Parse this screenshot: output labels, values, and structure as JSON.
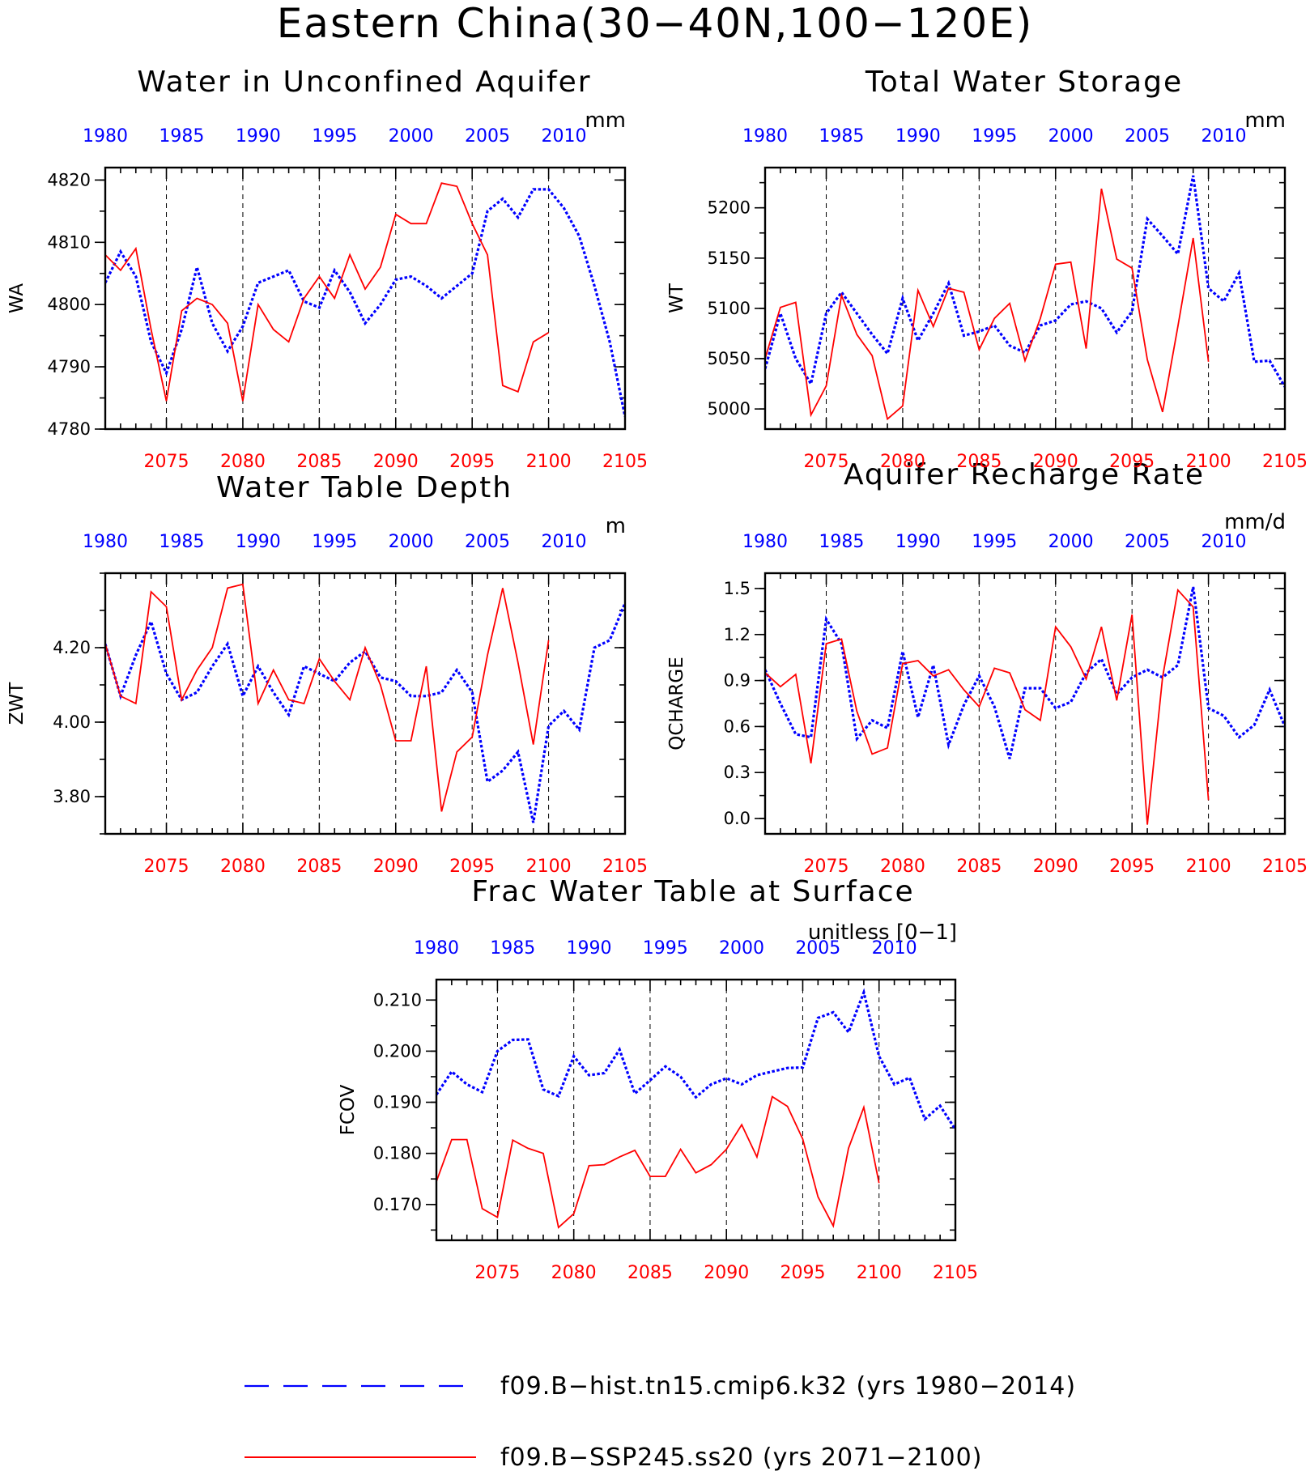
{
  "title": "Eastern China(30−40N,100−120E)",
  "colors": {
    "hist": "#0000ff",
    "ssp": "#ff0000",
    "axes": "#000000"
  },
  "legend": {
    "hist_label": "f09.B−hist.tn15.cmip6.k32 (yrs 1980−2014)",
    "ssp_label": "f09.B−SSP245.ss20 (yrs 2071−2100)"
  },
  "chart_data": [
    {
      "type": "line",
      "title": "Water in Unconfined Aquifer",
      "units": "mm",
      "ylabel": "WA",
      "ylim": [
        4780,
        4822
      ],
      "yticks": [
        "4780",
        "4790",
        "4800",
        "4810",
        "4820"
      ],
      "top_axis": {
        "range": [
          1980,
          2014
        ],
        "ticks": [
          "1980",
          "1985",
          "1990",
          "1995",
          "2000",
          "2005",
          "2010"
        ]
      },
      "bottom_axis": {
        "range": [
          2071,
          2105
        ],
        "ticks": [
          "2075",
          "2080",
          "2085",
          "2090",
          "2095",
          "2100",
          "2105"
        ]
      },
      "series": [
        {
          "name": "f09.B−hist.tn15.cmip6.k32 (yrs 1980−2014)",
          "style": "dotted",
          "values": [
            4803.5,
            4808.5,
            4804.5,
            4794,
            4789,
            4796,
            4806,
            4797,
            4792.5,
            4796.5,
            4803.5,
            4804.5,
            4805.5,
            4800.5,
            4799.5,
            4805.5,
            4802,
            4797,
            4800,
            4804,
            4804.5,
            4803,
            4801,
            4803,
            4805,
            4815,
            4817,
            4814,
            4818.5,
            4818.5,
            4815.5,
            4811,
            4803,
            4794,
            4782
          ]
        },
        {
          "name": "f09.B−SSP245.ss20 (yrs 2071−2100)",
          "style": "solid",
          "values": [
            4808,
            4805.5,
            4809,
            4796,
            4784.5,
            4799,
            4801,
            4800,
            4797,
            4784.5,
            4800,
            4796,
            4794,
            4801,
            4804.5,
            4801,
            4808,
            4802.5,
            4806,
            4814.5,
            4813,
            4813,
            4819.5,
            4819,
            4813,
            4808,
            4787,
            4786,
            4794,
            4795.5
          ]
        }
      ]
    },
    {
      "type": "line",
      "title": "Total Water Storage",
      "units": "mm",
      "ylabel": "WT",
      "ylim": [
        4980,
        5240
      ],
      "yticks": [
        "5000",
        "5050",
        "5100",
        "5150",
        "5200"
      ],
      "top_axis": {
        "range": [
          1980,
          2014
        ],
        "ticks": [
          "1980",
          "1985",
          "1990",
          "1995",
          "2000",
          "2005",
          "2010"
        ]
      },
      "bottom_axis": {
        "range": [
          2071,
          2105
        ],
        "ticks": [
          "2075",
          "2080",
          "2085",
          "2090",
          "2095",
          "2100",
          "2105"
        ]
      },
      "series": [
        {
          "name": "f09.B−hist.tn15.cmip6.k32 (yrs 1980−2014)",
          "style": "dotted",
          "values": [
            5040,
            5095,
            5050,
            5025,
            5095,
            5116,
            5095,
            5074,
            5055,
            5110,
            5068,
            5095,
            5125,
            5073,
            5077,
            5083,
            5063,
            5056,
            5083,
            5088,
            5104,
            5107,
            5100,
            5076,
            5097,
            5189,
            5172,
            5154,
            5232,
            5120,
            5107,
            5135,
            5047,
            5048,
            5022
          ]
        },
        {
          "name": "f09.B−SSP245.ss20 (yrs 2071−2100)",
          "style": "solid",
          "values": [
            5050,
            5101,
            5106,
            4994,
            5023,
            5113,
            5074,
            5053,
            4990,
            5003,
            5118,
            5082,
            5120,
            5116,
            5059,
            5090,
            5105,
            5048,
            5090,
            5144,
            5146,
            5060,
            5219,
            5149,
            5140,
            5049,
            4997,
            5082,
            5170,
            5047
          ]
        }
      ]
    },
    {
      "type": "line",
      "title": "Water Table Depth",
      "units": "m",
      "ylabel": "ZWT",
      "ylim": [
        3.7,
        4.4
      ],
      "yticks": [
        "3.80",
        "4.00",
        "4.20"
      ],
      "top_axis": {
        "range": [
          1980,
          2014
        ],
        "ticks": [
          "1980",
          "1985",
          "1990",
          "1995",
          "2000",
          "2005",
          "2010"
        ]
      },
      "bottom_axis": {
        "range": [
          2071,
          2105
        ],
        "ticks": [
          "2075",
          "2080",
          "2085",
          "2090",
          "2095",
          "2100",
          "2105"
        ]
      },
      "series": [
        {
          "name": "f09.B−hist.tn15.cmip6.k32 (yrs 1980−2014)",
          "style": "dotted",
          "values": [
            4.21,
            4.07,
            4.18,
            4.27,
            4.13,
            4.06,
            4.08,
            4.15,
            4.21,
            4.07,
            4.15,
            4.08,
            4.02,
            4.15,
            4.13,
            4.11,
            4.16,
            4.19,
            4.12,
            4.11,
            4.07,
            4.07,
            4.08,
            4.14,
            4.08,
            3.84,
            3.87,
            3.92,
            3.73,
            3.99,
            4.03,
            3.98,
            4.2,
            4.22,
            4.32
          ]
        },
        {
          "name": "f09.B−SSP245.ss20 (yrs 2071−2100)",
          "style": "solid",
          "values": [
            4.21,
            4.07,
            4.05,
            4.35,
            4.31,
            4.06,
            4.14,
            4.2,
            4.36,
            4.37,
            4.05,
            4.14,
            4.06,
            4.05,
            4.17,
            4.11,
            4.06,
            4.2,
            4.1,
            3.95,
            3.95,
            4.15,
            3.76,
            3.92,
            3.96,
            4.18,
            4.36,
            4.16,
            3.94,
            4.22
          ]
        }
      ]
    },
    {
      "type": "line",
      "title": "Aquifer Recharge Rate",
      "units": "mm/d",
      "ylabel": "QCHARGE",
      "ylim": [
        -0.1,
        1.6
      ],
      "yticks": [
        "0.0",
        "0.3",
        "0.6",
        "0.9",
        "1.2",
        "1.5"
      ],
      "top_axis": {
        "range": [
          1980,
          2014
        ],
        "ticks": [
          "1980",
          "1985",
          "1990",
          "1995",
          "2000",
          "2005",
          "2010"
        ]
      },
      "bottom_axis": {
        "range": [
          2071,
          2105
        ],
        "ticks": [
          "2075",
          "2080",
          "2085",
          "2090",
          "2095",
          "2100",
          "2105"
        ]
      },
      "series": [
        {
          "name": "f09.B−hist.tn15.cmip6.k32 (yrs 1980−2014)",
          "style": "dotted",
          "values": [
            0.97,
            0.75,
            0.55,
            0.53,
            1.3,
            1.14,
            0.52,
            0.64,
            0.59,
            1.09,
            0.66,
            1.0,
            0.48,
            0.74,
            0.93,
            0.73,
            0.39,
            0.85,
            0.85,
            0.72,
            0.76,
            0.95,
            1.04,
            0.81,
            0.92,
            0.97,
            0.92,
            1.0,
            1.51,
            0.72,
            0.67,
            0.53,
            0.61,
            0.84,
            0.6
          ]
        },
        {
          "name": "f09.B−SSP245.ss20 (yrs 2071−2100)",
          "style": "solid",
          "values": [
            0.95,
            0.86,
            0.94,
            0.36,
            1.14,
            1.17,
            0.7,
            0.42,
            0.46,
            1.01,
            1.03,
            0.93,
            0.97,
            0.84,
            0.73,
            0.98,
            0.95,
            0.71,
            0.64,
            1.25,
            1.12,
            0.91,
            1.25,
            0.77,
            1.33,
            -0.04,
            0.92,
            1.49,
            1.38,
            0.12
          ]
        }
      ]
    },
    {
      "type": "line",
      "title": "Frac Water Table at Surface",
      "units": "unitless [0−1]",
      "ylabel": "FCOV",
      "ylim": [
        0.163,
        0.214
      ],
      "yticks": [
        "0.170",
        "0.180",
        "0.190",
        "0.200",
        "0.210"
      ],
      "top_axis": {
        "range": [
          1980,
          2014
        ],
        "ticks": [
          "1980",
          "1985",
          "1990",
          "1995",
          "2000",
          "2005",
          "2010"
        ]
      },
      "bottom_axis": {
        "range": [
          2071,
          2105
        ],
        "ticks": [
          "2075",
          "2080",
          "2085",
          "2090",
          "2095",
          "2100",
          "2105"
        ]
      },
      "series": [
        {
          "name": "f09.B−hist.tn15.cmip6.k32 (yrs 1980−2014)",
          "style": "dotted",
          "values": [
            0.1915,
            0.196,
            0.1935,
            0.192,
            0.2,
            0.2022,
            0.2023,
            0.1925,
            0.1912,
            0.199,
            0.1953,
            0.1957,
            0.2003,
            0.1917,
            0.1943,
            0.197,
            0.195,
            0.191,
            0.1935,
            0.1947,
            0.1935,
            0.1953,
            0.196,
            0.1967,
            0.1968,
            0.2065,
            0.2076,
            0.2037,
            0.2115,
            0.199,
            0.1935,
            0.1948,
            0.1867,
            0.1893,
            0.1847
          ]
        },
        {
          "name": "f09.B−SSP245.ss20 (yrs 2071−2100)",
          "style": "solid",
          "values": [
            0.1745,
            0.1827,
            0.1827,
            0.1692,
            0.1675,
            0.1826,
            0.181,
            0.18,
            0.1655,
            0.1682,
            0.1776,
            0.1778,
            0.1793,
            0.1806,
            0.1755,
            0.1755,
            0.1808,
            0.1762,
            0.1778,
            0.1808,
            0.1856,
            0.1793,
            0.1911,
            0.1892,
            0.1828,
            0.1715,
            0.1658,
            0.181,
            0.189,
            0.1742
          ]
        }
      ]
    }
  ]
}
